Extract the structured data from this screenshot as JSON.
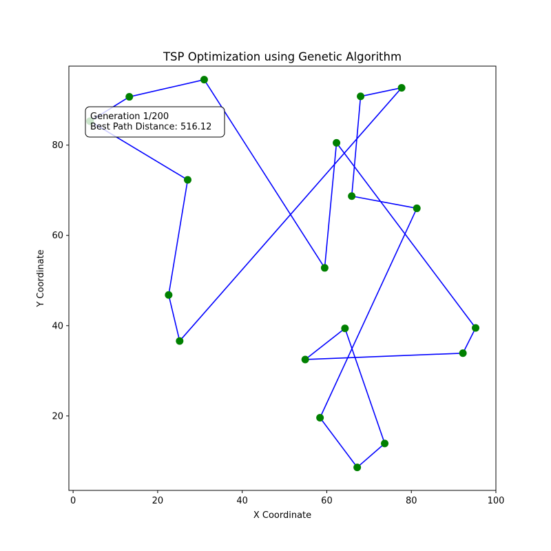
{
  "chart_data": {
    "type": "line",
    "title": "TSP Optimization using Genetic Algorithm",
    "xlabel": "X Coordinate",
    "ylabel": "Y Coordinate",
    "xlim": [
      -1,
      100
    ],
    "ylim": [
      3.5,
      97.5
    ],
    "xticks": [
      0,
      20,
      40,
      60,
      80,
      100
    ],
    "yticks": [
      20,
      40,
      60,
      80
    ],
    "grid": false,
    "line_color": "#0000ff",
    "marker_color": "#008000",
    "info_box": {
      "line1": "Generation 1/200",
      "line2": "Best Path Distance: 516.12"
    },
    "path": [
      {
        "x": 4.0,
        "y": 85.3
      },
      {
        "x": 13.3,
        "y": 90.7
      },
      {
        "x": 31.0,
        "y": 94.5
      },
      {
        "x": 59.5,
        "y": 52.8
      },
      {
        "x": 62.3,
        "y": 80.5
      },
      {
        "x": 95.2,
        "y": 39.5
      },
      {
        "x": 92.2,
        "y": 33.9
      },
      {
        "x": 54.9,
        "y": 32.5
      },
      {
        "x": 64.3,
        "y": 39.4
      },
      {
        "x": 73.7,
        "y": 13.9
      },
      {
        "x": 67.2,
        "y": 8.6
      },
      {
        "x": 58.4,
        "y": 19.6
      },
      {
        "x": 81.3,
        "y": 66.0
      },
      {
        "x": 65.9,
        "y": 68.7
      },
      {
        "x": 68.0,
        "y": 90.8
      },
      {
        "x": 77.7,
        "y": 92.7
      },
      {
        "x": 25.2,
        "y": 36.6
      },
      {
        "x": 22.6,
        "y": 46.8
      },
      {
        "x": 27.1,
        "y": 72.3
      },
      {
        "x": 4.0,
        "y": 85.3
      }
    ]
  }
}
